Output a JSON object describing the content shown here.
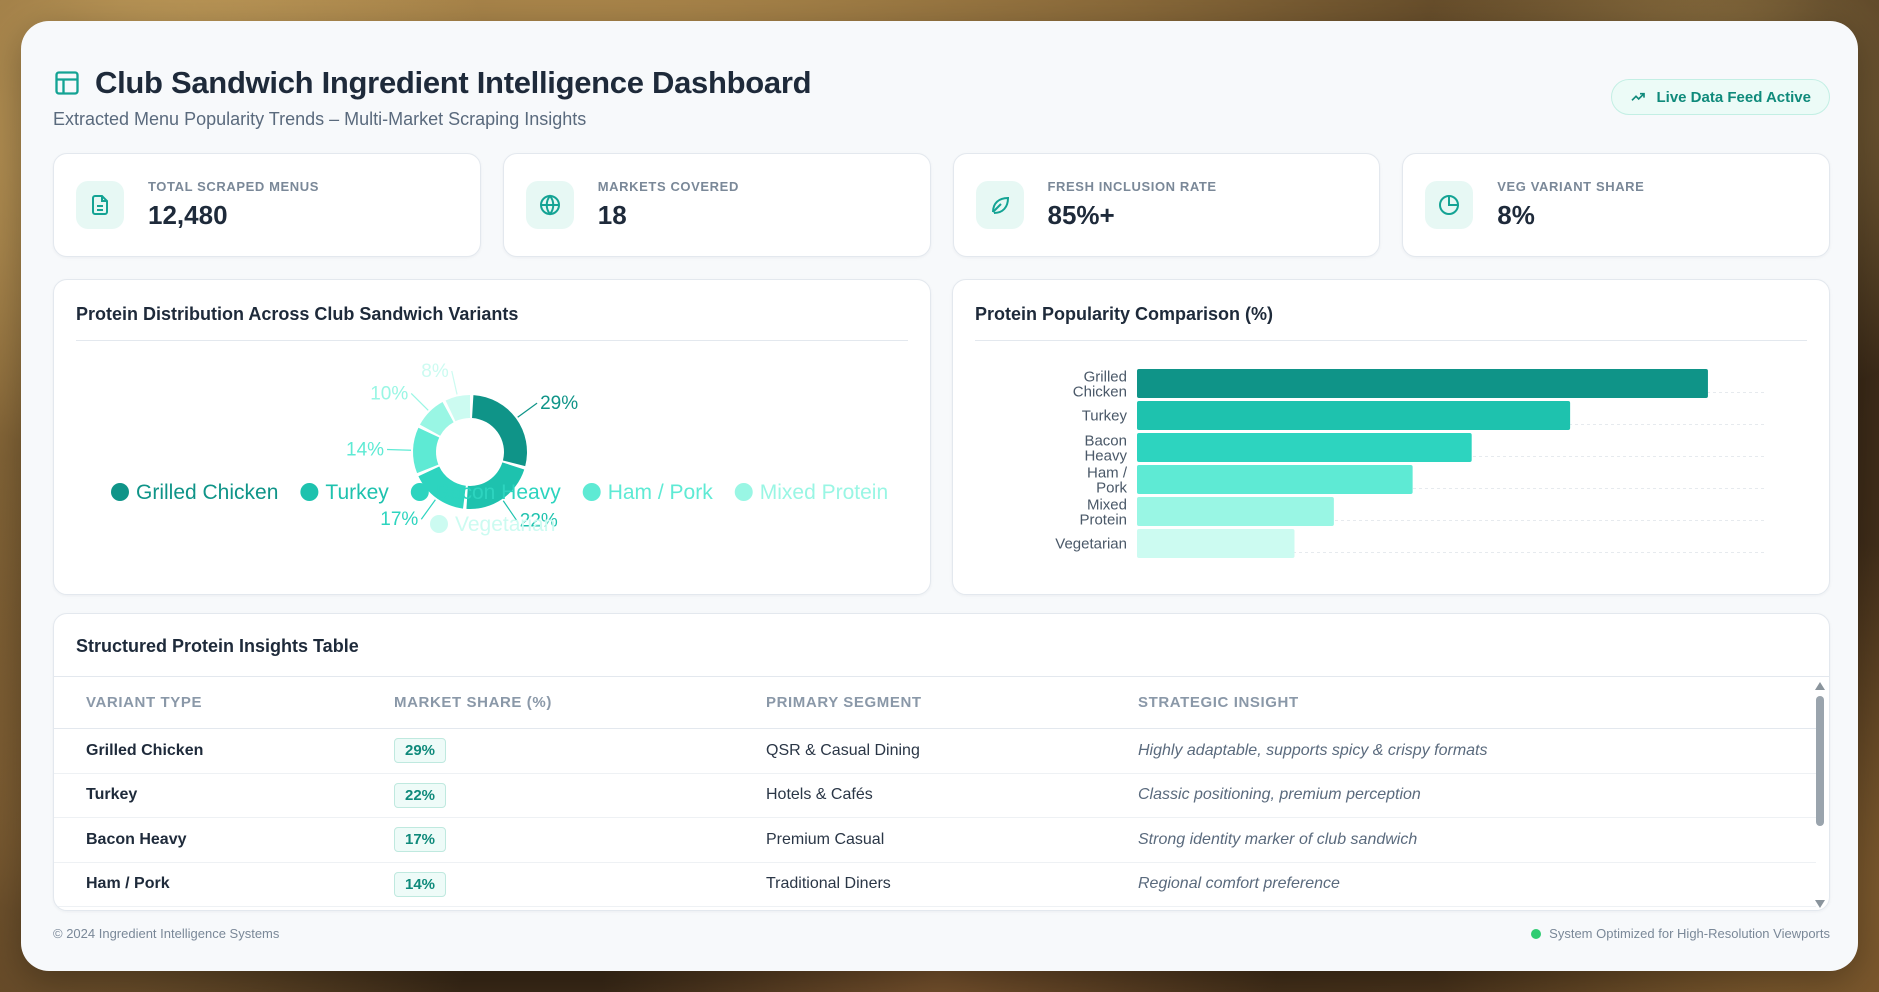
{
  "header": {
    "title": "Club Sandwich Ingredient Intelligence Dashboard",
    "subtitle": "Extracted Menu Popularity Trends – Multi-Market Scraping Insights",
    "badge": "Live Data Feed Active",
    "title_icon": "layout-icon",
    "badge_icon": "trending-up-icon"
  },
  "kpis": [
    {
      "label": "TOTAL SCRAPED MENUS",
      "value": "12,480",
      "icon": "document-icon"
    },
    {
      "label": "MARKETS COVERED",
      "value": "18",
      "icon": "globe-icon"
    },
    {
      "label": "FRESH INCLUSION RATE",
      "value": "85%+",
      "icon": "leaf-icon"
    },
    {
      "label": "VEG VARIANT SHARE",
      "value": "8%",
      "icon": "pie-icon"
    }
  ],
  "donut": {
    "title": "Protein Distribution Across Club Sandwich Variants"
  },
  "bars": {
    "title": "Protein Popularity Comparison (%)"
  },
  "colors": {
    "accent": "#14a394",
    "series": [
      "#0f9488",
      "#1ec2ae",
      "#2dd4bf",
      "#5eead4",
      "#99f6e4",
      "#ccfbf1"
    ]
  },
  "chart_data": [
    {
      "type": "pie",
      "title": "Protein Distribution Across Club Sandwich Variants",
      "categories": [
        "Grilled Chicken",
        "Turkey",
        "Bacon Heavy",
        "Ham / Pork",
        "Mixed Protein",
        "Vegetarian"
      ],
      "values": [
        29,
        22,
        17,
        14,
        10,
        8
      ],
      "labels": [
        "29%",
        "22%",
        "17%",
        "14%",
        "10%",
        "8%"
      ],
      "legend": "bottom"
    },
    {
      "type": "bar",
      "orientation": "horizontal",
      "title": "Protein Popularity Comparison (%)",
      "categories": [
        "Grilled Chicken",
        "Turkey",
        "Bacon Heavy",
        "Ham / Pork",
        "Mixed Protein",
        "Vegetarian"
      ],
      "values": [
        29,
        22,
        17,
        14,
        10,
        8
      ],
      "xlim": [
        0,
        32
      ],
      "grid": true
    }
  ],
  "table": {
    "title": "Structured Protein Insights Table",
    "columns": [
      "VARIANT TYPE",
      "MARKET SHARE (%)",
      "PRIMARY SEGMENT",
      "STRATEGIC INSIGHT"
    ],
    "rows": [
      {
        "variant": "Grilled Chicken",
        "share": "29%",
        "segment": "QSR & Casual Dining",
        "insight": "Highly adaptable, supports spicy & crispy formats"
      },
      {
        "variant": "Turkey",
        "share": "22%",
        "segment": "Hotels & Cafés",
        "insight": "Classic positioning, premium perception"
      },
      {
        "variant": "Bacon Heavy",
        "share": "17%",
        "segment": "Premium Casual",
        "insight": "Strong identity marker of club sandwich"
      },
      {
        "variant": "Ham / Pork",
        "share": "14%",
        "segment": "Traditional Diners",
        "insight": "Regional comfort preference"
      }
    ]
  },
  "footer": {
    "left": "© 2024 Ingredient Intelligence Systems",
    "right": "System Optimized for High-Resolution Viewports"
  }
}
